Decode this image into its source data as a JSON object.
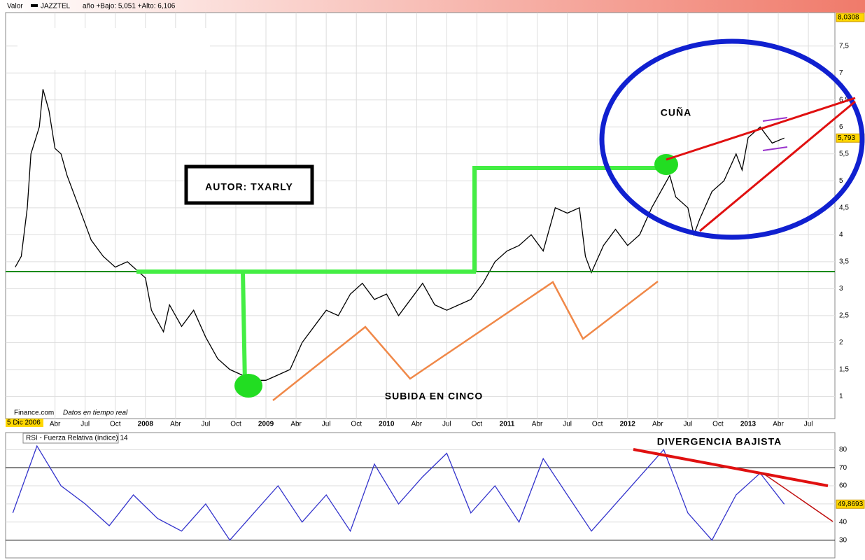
{
  "chart_data": [
    {
      "type": "line",
      "legend_label": "Valor",
      "subtitle": "año +Bajo: 5,051 +Alto: 6,106",
      "source": "Finance.com",
      "note": "Datos en tiempo real",
      "start_label": "5 Dic 2006",
      "xlim": [
        2006.84,
        2013.72
      ],
      "ylim": [
        0.59,
        8.12
      ],
      "grid": true,
      "xticks": [
        {
          "value": 2007.25,
          "label": "Abr"
        },
        {
          "value": 2007.5,
          "label": "Jul"
        },
        {
          "value": 2007.75,
          "label": "Oct"
        },
        2008,
        {
          "value": 2008.25,
          "label": "Abr"
        },
        {
          "value": 2008.5,
          "label": "Jul"
        },
        {
          "value": 2008.75,
          "label": "Oct"
        },
        2009,
        {
          "value": 2009.25,
          "label": "Abr"
        },
        {
          "value": 2009.5,
          "label": "Jul"
        },
        {
          "value": 2009.75,
          "label": "Oct"
        },
        2010,
        {
          "value": 2010.25,
          "label": "Abr"
        },
        {
          "value": 2010.5,
          "label": "Jul"
        },
        {
          "value": 2010.75,
          "label": "Oct"
        },
        2011,
        {
          "value": 2011.25,
          "label": "Abr"
        },
        {
          "value": 2011.5,
          "label": "Jul"
        },
        {
          "value": 2011.75,
          "label": "Oct"
        },
        2012,
        {
          "value": 2012.25,
          "label": "Abr"
        },
        {
          "value": 2012.5,
          "label": "Jul"
        },
        {
          "value": 2012.75,
          "label": "Oct"
        },
        2013,
        {
          "value": 2013.25,
          "label": "Abr"
        },
        {
          "value": 2013.5,
          "label": "Jul"
        }
      ],
      "yticks": [
        1,
        {
          "value": 1.5,
          "label": "1,5"
        },
        2,
        {
          "value": 2.5,
          "label": "2,5"
        },
        3,
        {
          "value": 3.5,
          "label": "3,5"
        },
        4,
        {
          "value": 4.5,
          "label": "4,5"
        },
        5,
        {
          "value": 5.5,
          "label": "5,5"
        },
        6,
        {
          "value": 6.5,
          "label": "6,5"
        },
        7,
        {
          "value": 7.5,
          "label": "7,5"
        }
      ],
      "markers": [
        {
          "value": 8.0308,
          "label": "8,0308"
        },
        {
          "value": 5.793,
          "label": "5,793"
        }
      ],
      "annotations": [
        "AUTOR: TXARLY",
        "CUÑA",
        "SUBIDA EN CINCO"
      ],
      "x": [
        2006.92,
        2006.97,
        2007.02,
        2007.05,
        2007.12,
        2007.15,
        2007.2,
        2007.25,
        2007.3,
        2007.35,
        2007.45,
        2007.55,
        2007.65,
        2007.75,
        2007.85,
        2007.95,
        2008.0,
        2008.05,
        2008.1,
        2008.15,
        2008.2,
        2008.3,
        2008.4,
        2008.5,
        2008.6,
        2008.7,
        2008.8,
        2008.9,
        2009.0,
        2009.1,
        2009.2,
        2009.3,
        2009.4,
        2009.5,
        2009.6,
        2009.7,
        2009.8,
        2009.9,
        2010.0,
        2010.1,
        2010.2,
        2010.3,
        2010.4,
        2010.5,
        2010.6,
        2010.7,
        2010.8,
        2010.9,
        2011.0,
        2011.1,
        2011.2,
        2011.3,
        2011.4,
        2011.5,
        2011.6,
        2011.65,
        2011.7,
        2011.8,
        2011.9,
        2012.0,
        2012.1,
        2012.2,
        2012.3,
        2012.35,
        2012.4,
        2012.5,
        2012.55,
        2012.6,
        2012.7,
        2012.8,
        2012.9,
        2012.95,
        2013.0,
        2013.1,
        2013.2,
        2013.3
      ],
      "series": [
        {
          "name": "JAZZTEL",
          "color": "#000000",
          "values": [
            3.4,
            3.6,
            4.5,
            5.5,
            6.0,
            6.7,
            6.3,
            5.6,
            5.5,
            5.1,
            4.5,
            3.9,
            3.6,
            3.4,
            3.5,
            3.3,
            3.2,
            2.6,
            2.4,
            2.2,
            2.7,
            2.3,
            2.6,
            2.1,
            1.7,
            1.5,
            1.4,
            1.3,
            1.3,
            1.4,
            1.5,
            2.0,
            2.3,
            2.6,
            2.5,
            2.9,
            3.1,
            2.8,
            2.9,
            2.5,
            2.8,
            3.1,
            2.7,
            2.6,
            2.7,
            2.8,
            3.1,
            3.5,
            3.7,
            3.8,
            4.0,
            3.7,
            4.5,
            4.4,
            4.5,
            3.6,
            3.3,
            3.8,
            4.1,
            3.8,
            4.0,
            4.5,
            4.9,
            5.1,
            4.7,
            4.5,
            4.0,
            4.3,
            4.8,
            5.0,
            5.5,
            5.2,
            5.8,
            6.0,
            5.7,
            5.793
          ]
        }
      ]
    },
    {
      "type": "line",
      "title": "RSI - Fuerza Relativa (índice) 14",
      "xlim": [
        2006.84,
        2013.72
      ],
      "ylim": [
        20.2,
        89.4
      ],
      "yticks": [
        30,
        40,
        50,
        60,
        70,
        80
      ],
      "levels": [
        30,
        70
      ],
      "grid": true,
      "markers": [
        {
          "value": 49.8693,
          "label": "49,8693"
        }
      ],
      "annotations": [
        "DIVERGENCIA BAJISTA"
      ],
      "x": [
        2006.9,
        2007.1,
        2007.3,
        2007.5,
        2007.7,
        2007.9,
        2008.1,
        2008.3,
        2008.5,
        2008.7,
        2008.9,
        2009.1,
        2009.3,
        2009.5,
        2009.7,
        2009.9,
        2010.1,
        2010.3,
        2010.5,
        2010.7,
        2010.9,
        2011.1,
        2011.3,
        2011.5,
        2011.7,
        2011.9,
        2012.1,
        2012.3,
        2012.5,
        2012.7,
        2012.9,
        2013.1,
        2013.3
      ],
      "series": [
        {
          "name": "RSI",
          "color": "#3333cc",
          "values": [
            45,
            82,
            60,
            50,
            38,
            55,
            42,
            35,
            50,
            30,
            45,
            60,
            40,
            55,
            35,
            72,
            50,
            65,
            78,
            45,
            60,
            40,
            75,
            55,
            35,
            50,
            65,
            80,
            45,
            30,
            55,
            67,
            49.87
          ]
        }
      ]
    }
  ]
}
